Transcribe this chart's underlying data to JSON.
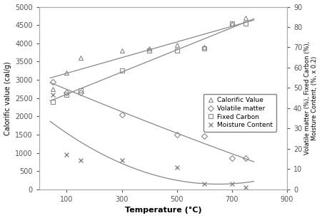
{
  "title": "",
  "xlabel": "Temperature (°C)",
  "ylabel_left": "Calorific value (cal/g)",
  "ylabel_right": "Volatile matter (%), Fixed Carbon (%),\nMoisture Content, (%, x 0.2)",
  "xlim": [
    0,
    900
  ],
  "ylim_left": [
    0,
    5000
  ],
  "ylim_right": [
    0,
    90
  ],
  "xticks": [
    100,
    300,
    500,
    700,
    900
  ],
  "yticks_left": [
    0,
    500,
    1000,
    1500,
    2000,
    2500,
    3000,
    3500,
    4000,
    4500,
    5000
  ],
  "yticks_right": [
    0,
    10,
    20,
    30,
    40,
    50,
    60,
    70,
    80,
    90
  ],
  "calorific_x": [
    50,
    100,
    150,
    300,
    400,
    500,
    600,
    700,
    750
  ],
  "calorific_y": [
    2750,
    3200,
    3600,
    3800,
    3850,
    3950,
    3900,
    4550,
    4700
  ],
  "volatile_x": [
    50,
    100,
    150,
    300,
    500,
    600,
    700,
    750
  ],
  "volatile_y": [
    2950,
    2650,
    2650,
    2050,
    1500,
    1450,
    850,
    850
  ],
  "fixed_x": [
    50,
    100,
    150,
    300,
    400,
    500,
    600,
    700,
    750
  ],
  "fixed_y": [
    2400,
    2600,
    2700,
    3250,
    3800,
    3800,
    3850,
    4550,
    4550
  ],
  "moisture_x": [
    50,
    100,
    150,
    300,
    500,
    600,
    700,
    750
  ],
  "moisture_y": [
    2600,
    950,
    800,
    800,
    600,
    150,
    150,
    50
  ],
  "legend_labels": [
    "Calorific Value",
    "Volatile matter",
    "Fixed Carbon",
    "Moisture Content"
  ],
  "marker_calorific": "^",
  "marker_volatile": "D",
  "marker_fixed": "s",
  "marker_moisture": "x",
  "line_color": "#888888",
  "marker_color": "#888888",
  "background": "#ffffff"
}
